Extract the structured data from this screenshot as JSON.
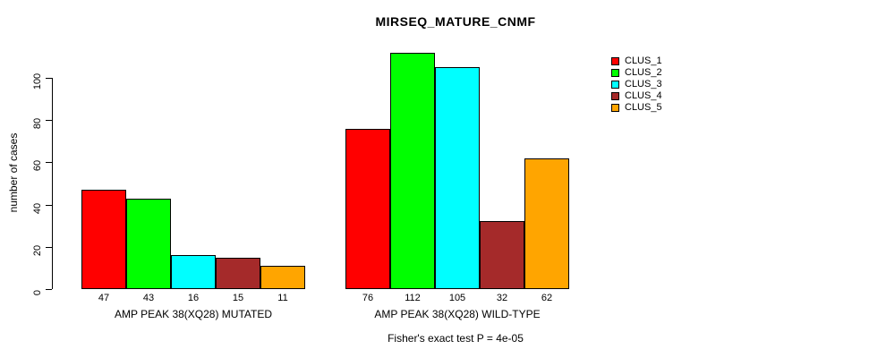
{
  "chart_data": {
    "type": "bar",
    "title": "MIRSEQ_MATURE_CNMF",
    "xlabel": "",
    "ylabel": "number of cases",
    "yticks": [
      0,
      20,
      40,
      60,
      80,
      100
    ],
    "ylim": [
      0,
      112
    ],
    "grid": false,
    "bar_value_labels": true,
    "legend_position": "top-right",
    "categories": [
      "AMP PEAK 38(XQ28) MUTATED",
      "AMP PEAK 38(XQ28) WILD-TYPE"
    ],
    "series": [
      {
        "name": "CLUS_1",
        "color": "#FF0000",
        "values": [
          47,
          76
        ]
      },
      {
        "name": "CLUS_2",
        "color": "#00FF00",
        "values": [
          43,
          112
        ]
      },
      {
        "name": "CLUS_3",
        "color": "#00FFFF",
        "values": [
          16,
          105
        ]
      },
      {
        "name": "CLUS_4",
        "color": "#A52A2A",
        "values": [
          15,
          32
        ]
      },
      {
        "name": "CLUS_5",
        "color": "#FFA500",
        "values": [
          11,
          62
        ]
      }
    ],
    "annotation": "Fisher's exact test P = 4e-05"
  },
  "colors": {
    "background": "#FFFFFF",
    "axis": "#000000",
    "text": "#000000"
  }
}
